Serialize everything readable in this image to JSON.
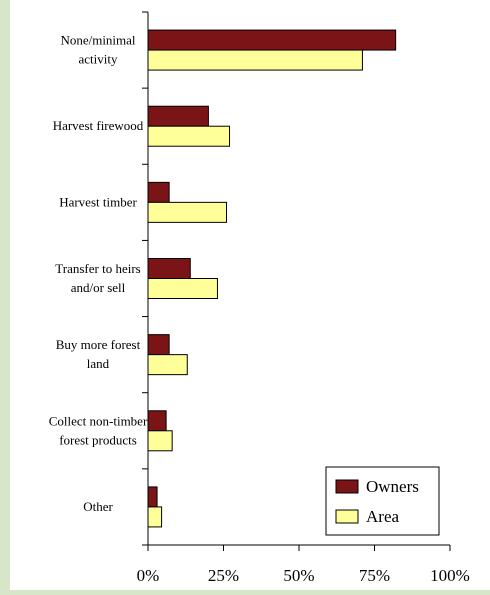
{
  "chart_data": {
    "type": "bar",
    "orientation": "horizontal",
    "categories": [
      [
        "None/minimal",
        "activity"
      ],
      [
        "Harvest firewood"
      ],
      [
        "Harvest timber"
      ],
      [
        "Transfer to heirs",
        "and/or sell"
      ],
      [
        "Buy more forest",
        "land"
      ],
      [
        "Collect non-timber",
        "forest products"
      ],
      [
        "Other"
      ]
    ],
    "series": [
      {
        "name": "Owners",
        "color": "#7b1416",
        "values": [
          82,
          20,
          7,
          14,
          7,
          6,
          3
        ]
      },
      {
        "name": "Area",
        "color": "#ffff99",
        "values": [
          71,
          27,
          26,
          23,
          13,
          8,
          4.5
        ]
      }
    ],
    "xlim": [
      0,
      100
    ],
    "x_ticks": [
      "0%",
      "25%",
      "50%",
      "75%",
      "100%"
    ],
    "x_tick_values": [
      0,
      25,
      50,
      75,
      100
    ],
    "grid": false,
    "legend_position": "bottom-right"
  }
}
